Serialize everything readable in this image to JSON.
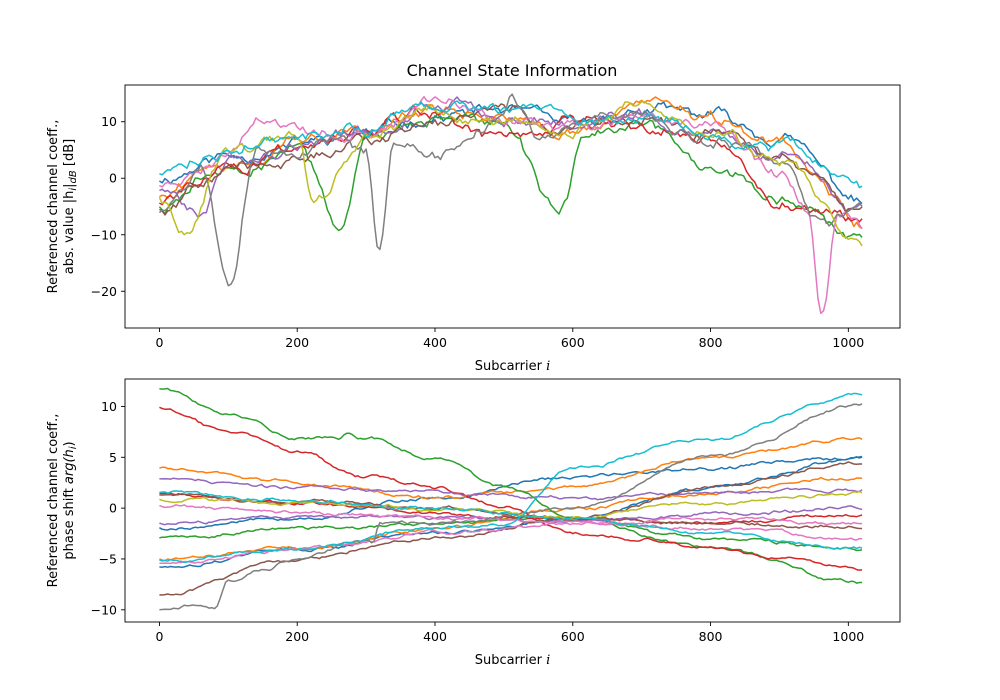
{
  "figure": {
    "title": "Channel State Information"
  },
  "chart_data": [
    {
      "type": "line",
      "title": "Channel State Information",
      "xlabel": "Subcarrier i",
      "xlabel_text": "Subcarrier ",
      "xlabel_var": "i",
      "ylabel_lines": [
        "Referenced channel coeff.,",
        "abs. value |h",
        "i",
        "|",
        "dB",
        " [dB]"
      ],
      "xlim": [
        -50,
        1075
      ],
      "ylim": [
        -26.5,
        16.5
      ],
      "xticks": [
        0,
        200,
        400,
        600,
        800,
        1000
      ],
      "yticks": [
        -20,
        -10,
        0,
        10
      ],
      "grid": false,
      "legend": "none",
      "x_range": [
        0,
        1023
      ],
      "series_colors": [
        "#1f77b4",
        "#ff7f0e",
        "#2ca02c",
        "#d62728",
        "#9467bd",
        "#8c564b",
        "#e377c2",
        "#7f7f7f",
        "#bcbd22",
        "#17becf"
      ],
      "series": [
        {
          "color": "#1f77b4",
          "x": [
            0,
            100,
            200,
            300,
            400,
            500,
            600,
            700,
            800,
            900,
            1023
          ],
          "y": [
            0,
            4,
            6,
            8,
            11,
            12,
            9,
            12,
            11,
            7,
            -4
          ]
        },
        {
          "color": "#ff7f0e",
          "x": [
            0,
            100,
            200,
            300,
            400,
            500,
            600,
            700,
            800,
            900,
            1023
          ],
          "y": [
            -3,
            3,
            7,
            9,
            12,
            11,
            8,
            13,
            10,
            6,
            -8
          ]
        },
        {
          "color": "#2ca02c",
          "x": [
            0,
            100,
            200,
            265,
            300,
            400,
            500,
            580,
            620,
            700,
            800,
            900,
            1023
          ],
          "y": [
            -5,
            2,
            6,
            -7.5,
            7,
            11,
            9,
            -5.5,
            8,
            9,
            2,
            -3,
            -12
          ]
        },
        {
          "color": "#d62728",
          "x": [
            0,
            100,
            200,
            300,
            400,
            500,
            600,
            700,
            800,
            900,
            1023
          ],
          "y": [
            -4,
            2,
            5,
            9,
            12,
            6,
            11,
            10,
            7,
            -4,
            -8
          ]
        },
        {
          "color": "#9467bd",
          "x": [
            0,
            60,
            100,
            200,
            300,
            400,
            500,
            600,
            700,
            800,
            900,
            1023
          ],
          "y": [
            -2,
            -7,
            3,
            6,
            8,
            13,
            11,
            10,
            12,
            8,
            4,
            -6
          ]
        },
        {
          "color": "#8c564b",
          "x": [
            0,
            100,
            200,
            300,
            400,
            500,
            600,
            700,
            800,
            900,
            1023
          ],
          "y": [
            -5,
            1,
            4,
            6,
            10,
            12,
            9,
            11,
            8,
            3,
            -7
          ]
        },
        {
          "color": "#e377c2",
          "x": [
            0,
            100,
            140,
            200,
            300,
            400,
            500,
            600,
            700,
            800,
            900,
            940,
            962,
            985,
            1023
          ],
          "y": [
            -1,
            3,
            10,
            8,
            7,
            13,
            10,
            9,
            11,
            10,
            1,
            -5,
            -24.5,
            -7,
            -9
          ]
        },
        {
          "color": "#7f7f7f",
          "x": [
            0,
            60,
            102,
            140,
            200,
            260,
            300,
            318,
            340,
            400,
            500,
            512,
            560,
            600,
            700,
            800,
            900,
            960,
            1023
          ],
          "y": [
            -6,
            2,
            -18,
            6,
            5,
            8,
            4,
            -13.5,
            6,
            4,
            11,
            14,
            7,
            9,
            11,
            7,
            3,
            -9,
            -6
          ]
        },
        {
          "color": "#bcbd22",
          "x": [
            0,
            35,
            100,
            200,
            225,
            300,
            400,
            500,
            600,
            700,
            800,
            900,
            1023
          ],
          "y": [
            -3,
            -9.5,
            5,
            7,
            -5,
            8,
            12,
            10,
            9,
            13,
            9,
            3,
            -13
          ]
        },
        {
          "color": "#17becf",
          "x": [
            0,
            100,
            200,
            300,
            400,
            500,
            600,
            700,
            800,
            900,
            1023
          ],
          "y": [
            1,
            5,
            7,
            9,
            13,
            12,
            10,
            11,
            9,
            6,
            -2
          ]
        }
      ]
    },
    {
      "type": "line",
      "title": "",
      "xlabel": "Subcarrier i",
      "xlabel_text": "Subcarrier ",
      "xlabel_var": "i",
      "ylabel_lines": [
        "Referenced channel coeff.,",
        "phase shift ",
        "arg(h",
        "i",
        ")"
      ],
      "xlim": [
        -50,
        1075
      ],
      "ylim": [
        -11.2,
        12.7
      ],
      "xticks": [
        0,
        200,
        400,
        600,
        800,
        1000
      ],
      "yticks": [
        -10,
        -5,
        0,
        5,
        10
      ],
      "grid": false,
      "legend": "none",
      "series": [
        {
          "color": "#1f77b4",
          "x": [
            0,
            200,
            400,
            600,
            800,
            1023
          ],
          "y": [
            -2,
            -1,
            1,
            3,
            4,
            5
          ]
        },
        {
          "color": "#1f77b4",
          "x": [
            0,
            200,
            400,
            600,
            800,
            1023
          ],
          "y": [
            -5.8,
            -4,
            -2.5,
            -1,
            2,
            5
          ]
        },
        {
          "color": "#ff7f0e",
          "x": [
            0,
            200,
            400,
            600,
            800,
            1023
          ],
          "y": [
            3.9,
            2.5,
            1,
            2,
            5,
            6.8
          ]
        },
        {
          "color": "#ff7f0e",
          "x": [
            0,
            200,
            400,
            600,
            800,
            1023
          ],
          "y": [
            -5,
            -4,
            -2,
            0,
            1.5,
            3
          ]
        },
        {
          "color": "#2ca02c",
          "x": [
            0,
            100,
            200,
            260,
            270,
            300,
            400,
            500,
            600,
            800,
            1023
          ],
          "y": [
            11.7,
            9.5,
            7,
            6.8,
            7.2,
            6.8,
            5,
            2,
            -1,
            -4,
            -7.3
          ]
        },
        {
          "color": "#2ca02c",
          "x": [
            0,
            200,
            400,
            600,
            800,
            1023
          ],
          "y": [
            -3,
            -2,
            -1.5,
            -1,
            -3,
            -4
          ]
        },
        {
          "color": "#d62728",
          "x": [
            0,
            100,
            200,
            300,
            400,
            500,
            600,
            700,
            800,
            900,
            1023
          ],
          "y": [
            9.9,
            7.5,
            5.5,
            3,
            2,
            0,
            -2.5,
            -3,
            -4,
            -5,
            -6
          ]
        },
        {
          "color": "#d62728",
          "x": [
            0,
            200,
            400,
            600,
            800,
            1023
          ],
          "y": [
            1.4,
            0.5,
            -0.5,
            -1,
            -1.5,
            -0.5
          ]
        },
        {
          "color": "#9467bd",
          "x": [
            0,
            200,
            400,
            600,
            800,
            1023
          ],
          "y": [
            2.8,
            2,
            1.5,
            1,
            1.5,
            1.8
          ]
        },
        {
          "color": "#9467bd",
          "x": [
            0,
            200,
            400,
            600,
            800,
            1023
          ],
          "y": [
            -1.5,
            -1,
            -1,
            -1.5,
            -0.5,
            0
          ]
        },
        {
          "color": "#8c564b",
          "x": [
            0,
            200,
            400,
            600,
            800,
            1023
          ],
          "y": [
            -8.6,
            -5,
            -3,
            -1,
            2,
            4.5
          ]
        },
        {
          "color": "#8c564b",
          "x": [
            0,
            200,
            400,
            600,
            800,
            1023
          ],
          "y": [
            1.2,
            0.5,
            0,
            -1,
            -1.5,
            -1.8
          ]
        },
        {
          "color": "#e377c2",
          "x": [
            0,
            200,
            400,
            600,
            800,
            1023
          ],
          "y": [
            0.2,
            -0.5,
            -1,
            -1.5,
            -2,
            -3
          ]
        },
        {
          "color": "#e377c2",
          "x": [
            0,
            200,
            400,
            600,
            800,
            1023
          ],
          "y": [
            -5.5,
            -4,
            -2.5,
            -1.5,
            -1,
            -1.5
          ]
        },
        {
          "color": "#7f7f7f",
          "x": [
            0,
            50,
            80,
            100,
            150,
            200,
            300,
            310,
            320,
            400,
            600,
            800,
            1023
          ],
          "y": [
            -10.1,
            -9.5,
            -9.8,
            -7,
            -6,
            -5,
            -3,
            -3.5,
            -1.5,
            -1.5,
            0,
            5,
            10.2
          ]
        },
        {
          "color": "#bcbd22",
          "x": [
            0,
            200,
            400,
            600,
            800,
            1023
          ],
          "y": [
            0.8,
            0.5,
            0,
            -1,
            0.5,
            1.5
          ]
        },
        {
          "color": "#17becf",
          "x": [
            0,
            200,
            400,
            500,
            600,
            800,
            1023
          ],
          "y": [
            -5.2,
            -4,
            -2,
            -1.5,
            4,
            7,
            11.2
          ]
        },
        {
          "color": "#17becf",
          "x": [
            0,
            200,
            400,
            600,
            800,
            1023
          ],
          "y": [
            1.5,
            0.8,
            0,
            -1,
            -2.5,
            -4
          ]
        }
      ]
    }
  ]
}
